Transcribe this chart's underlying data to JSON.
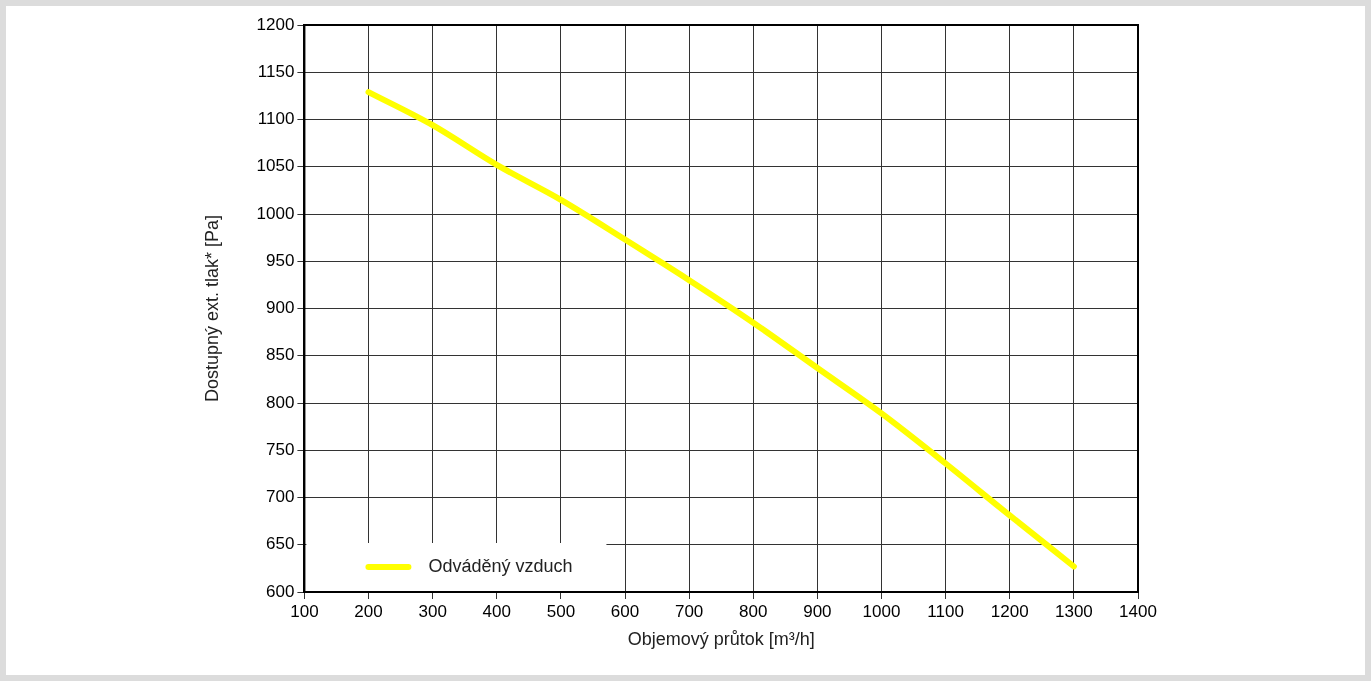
{
  "chart_data": {
    "type": "line",
    "xlabel": "Objemový průtok [m³/h]",
    "ylabel": "Dostupný ext. tlak* [Pa]",
    "x": [
      200,
      300,
      400,
      500,
      600,
      700,
      800,
      900,
      1000,
      1100,
      1200,
      1300
    ],
    "series": [
      {
        "name": "Odváděný vzduch",
        "color": "#ffff00",
        "values": [
          1129,
          1094,
          1052,
          1015,
          973,
          930,
          885,
          837,
          789,
          736,
          681,
          627
        ]
      }
    ],
    "xlim": [
      100,
      1400
    ],
    "xticks": [
      100,
      200,
      300,
      400,
      500,
      600,
      700,
      800,
      900,
      1000,
      1100,
      1200,
      1300,
      1400
    ],
    "ylim": [
      600,
      1200
    ],
    "yticks": [
      600,
      650,
      700,
      750,
      800,
      850,
      900,
      950,
      1000,
      1050,
      1100,
      1150,
      1200
    ],
    "grid": true,
    "legend": "bottom left",
    "marker": "none",
    "line_style": "solid"
  }
}
